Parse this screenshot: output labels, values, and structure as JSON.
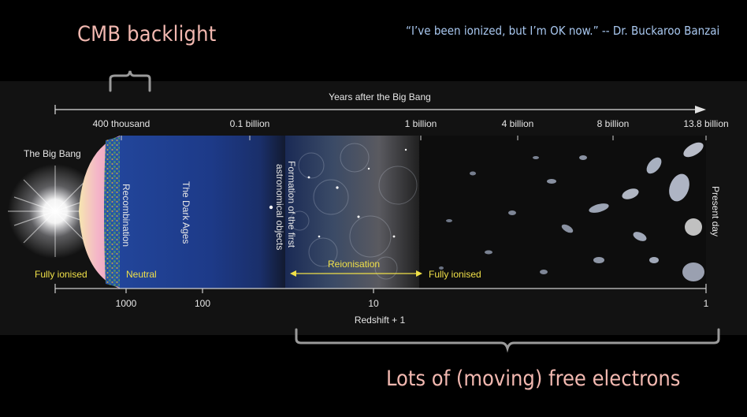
{
  "header": {
    "cmb_title": "CMB backlight",
    "quote": "“I’ve been ionized, but I’m OK now.” -- Dr. Buckaroo Banzai"
  },
  "footer": {
    "free_electrons": "Lots of (moving) free electrons"
  },
  "timeline": {
    "top_axis_title": "Years after the Big Bang",
    "top_ticks": [
      "400 thousand",
      "0.1 billion",
      "1 billion",
      "4 billion",
      "8 billion",
      "13.8 billion"
    ],
    "bottom_axis_title": "Redshift + 1",
    "bottom_ticks": [
      "1000",
      "100",
      "10",
      "1"
    ],
    "big_bang": "The Big Bang",
    "recombination": "Recombination",
    "dark_ages": "The Dark Ages",
    "formation_line1": "Formation of the first",
    "formation_line2": "astronomical objects",
    "present_day": "Present day",
    "fully_ionised_left": "Fully ionised",
    "neutral": "Neutral",
    "reionisation": "Reionisation",
    "fully_ionised_right": "Fully ionised"
  },
  "colors": {
    "title_pink": "#f2b8b0",
    "quote_blue": "#a9c8f0",
    "annotation_yellow": "#f0e048",
    "dark_ages_blue": "#1f3c8c"
  }
}
